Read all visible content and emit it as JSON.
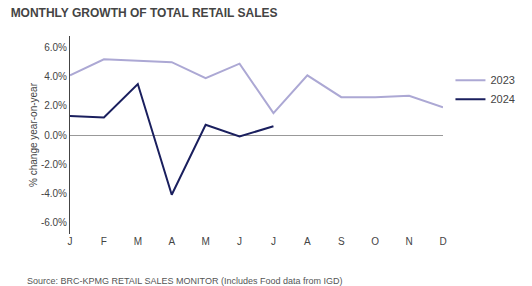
{
  "chart_data": {
    "type": "line",
    "title": "MONTHLY GROWTH OF TOTAL RETAIL SALES",
    "y_label": "% change year-on-year",
    "annotations": [
      "Source: BRC-KPMG RETAIL SALES MONITOR (Includes Food data from IGD)"
    ],
    "categories": [
      "J",
      "F",
      "M",
      "A",
      "M",
      "J",
      "J",
      "A",
      "S",
      "O",
      "N",
      "D"
    ],
    "series": [
      {
        "name": "2023",
        "color": "#aca8d4",
        "values": [
          4.1,
          5.2,
          5.1,
          5.0,
          3.9,
          4.9,
          1.5,
          4.1,
          2.6,
          2.6,
          2.7,
          1.9
        ]
      },
      {
        "name": "2024",
        "color": "#1a1f5e",
        "values": [
          1.3,
          1.2,
          3.5,
          -4.1,
          0.7,
          -0.1,
          0.6,
          null,
          null,
          null,
          null,
          null
        ]
      }
    ],
    "ylim": [
      -6.8,
      6.8
    ],
    "yticks": [
      {
        "value": -6.0,
        "label": "-6.0%"
      },
      {
        "value": -4.0,
        "label": "-4.0%"
      },
      {
        "value": -2.0,
        "label": "-2.0%"
      },
      {
        "value": 0.0,
        "label": "0.0%"
      },
      {
        "value": 2.0,
        "label": "2.0%"
      },
      {
        "value": 4.0,
        "label": "4.0%"
      },
      {
        "value": 6.0,
        "label": "6.0%"
      }
    ],
    "grid": false,
    "legend": "right"
  }
}
